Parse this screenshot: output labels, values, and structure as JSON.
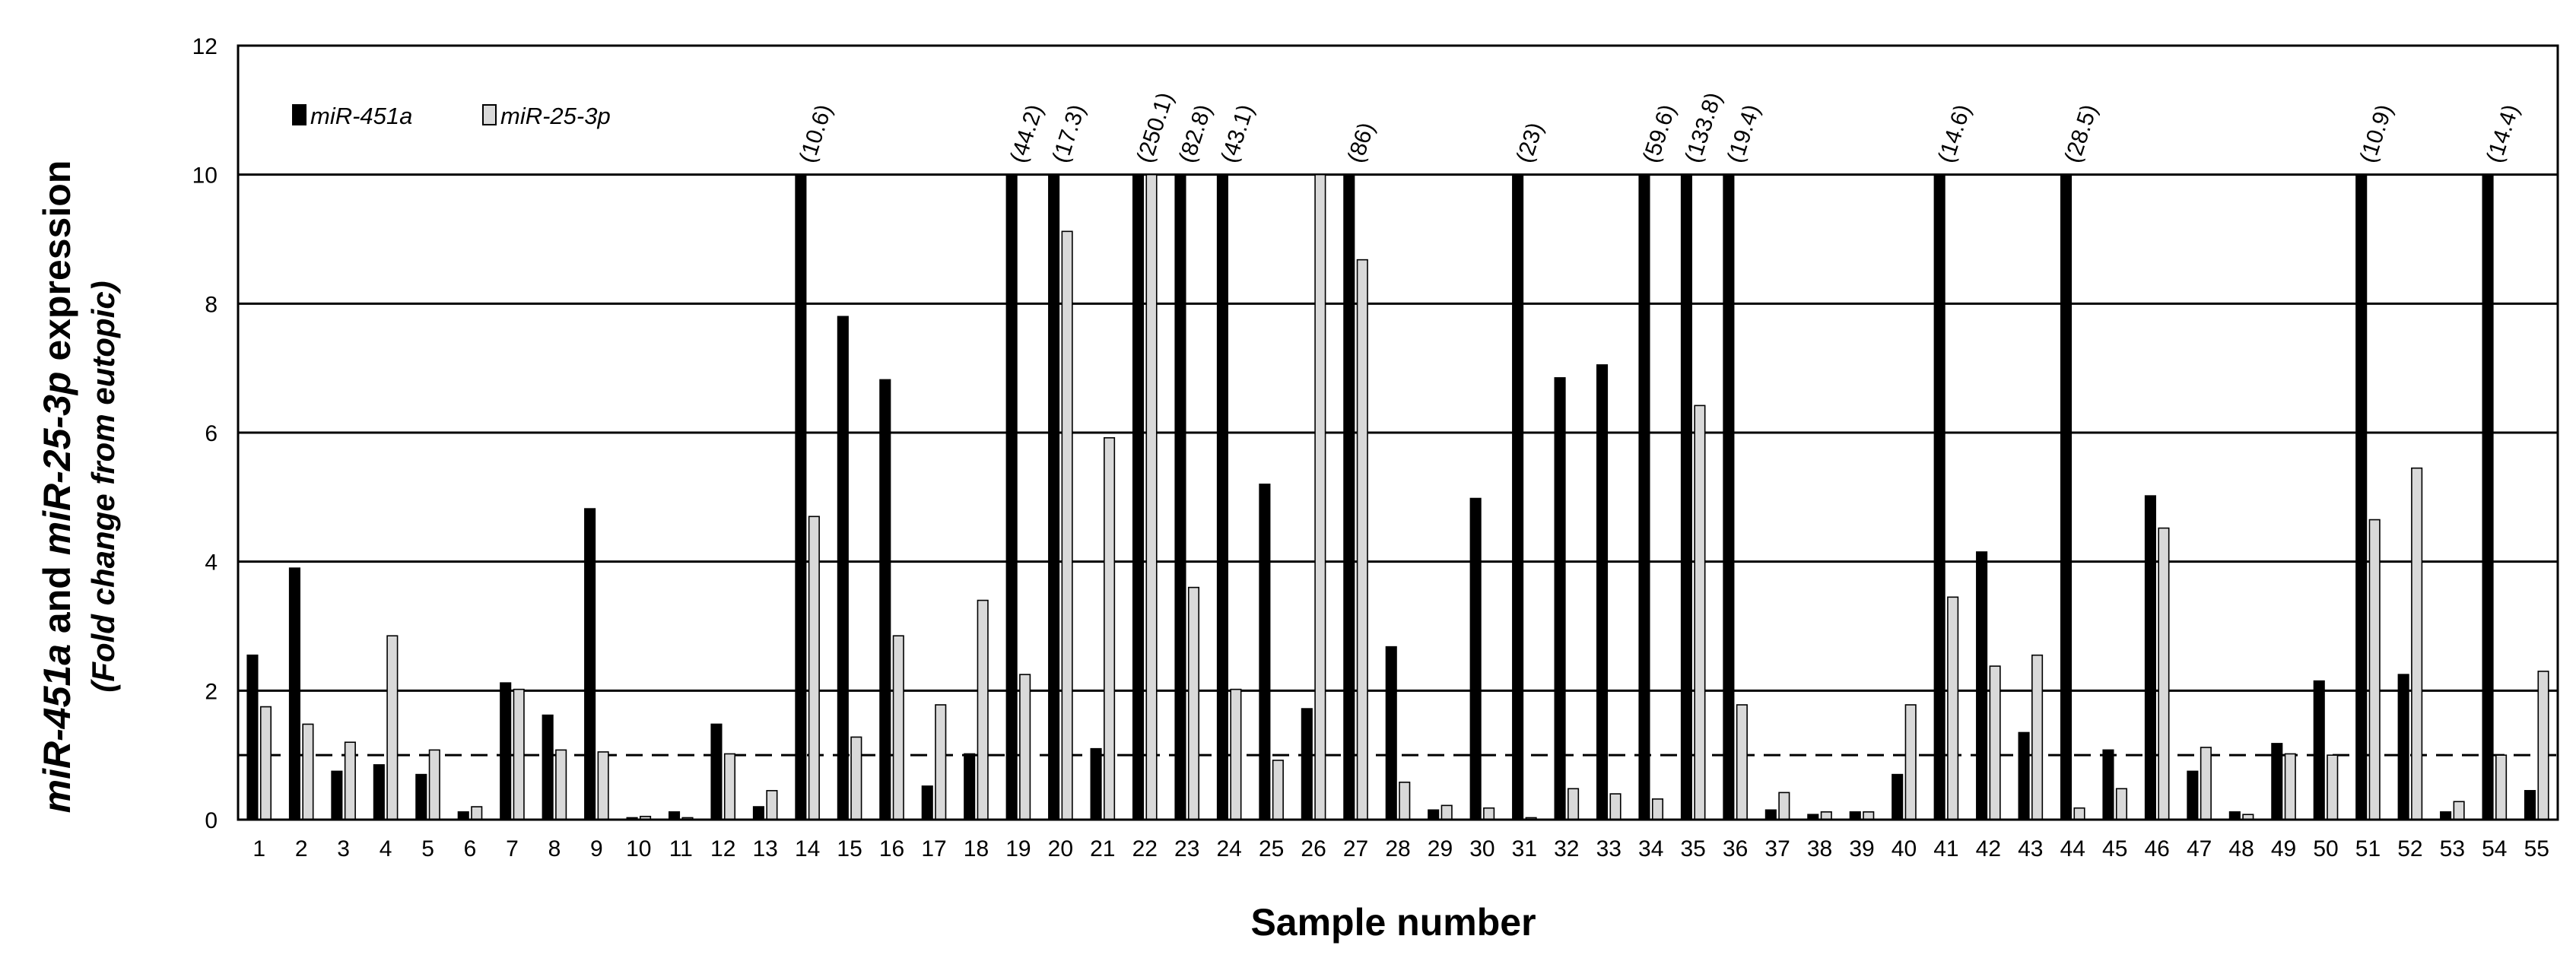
{
  "chart_data": {
    "type": "bar",
    "xlabel": "Sample number",
    "ylabel": {
      "line1": [
        {
          "text": "miR-451a",
          "italic": true
        },
        {
          "text": " and ",
          "italic": false
        },
        {
          "text": "miR-25-3p",
          "italic": true
        },
        {
          "text": " expression",
          "italic": false
        }
      ],
      "line2": "(Fold change from eutopic)"
    },
    "ylim": [
      0,
      12
    ],
    "yticks": [
      0,
      2,
      4,
      6,
      8,
      10,
      12
    ],
    "grid": "horizontal",
    "reference_line": 1,
    "legend_position": "top-left",
    "categories": [
      "1",
      "2",
      "3",
      "4",
      "5",
      "6",
      "7",
      "8",
      "9",
      "10",
      "11",
      "12",
      "13",
      "14",
      "15",
      "16",
      "17",
      "18",
      "19",
      "20",
      "21",
      "22",
      "23",
      "24",
      "25",
      "26",
      "27",
      "28",
      "29",
      "30",
      "31",
      "32",
      "33",
      "34",
      "35",
      "36",
      "37",
      "38",
      "39",
      "40",
      "41",
      "42",
      "43",
      "44",
      "45",
      "46",
      "47",
      "48",
      "49",
      "50",
      "51",
      "52",
      "53",
      "54",
      "55"
    ],
    "series": [
      {
        "name": "miR-451a",
        "color": "#000000",
        "values": [
          2.55,
          3.9,
          0.75,
          0.85,
          0.7,
          0.12,
          2.12,
          1.62,
          4.82,
          0.03,
          0.12,
          1.48,
          0.2,
          10,
          7.8,
          6.82,
          0.52,
          1.02,
          10,
          10,
          1.1,
          10,
          10,
          10,
          5.2,
          1.72,
          10,
          2.68,
          0.15,
          4.98,
          10,
          6.85,
          7.05,
          10,
          10,
          10,
          0.15,
          0.08,
          0.12,
          0.7,
          10,
          4.15,
          1.35,
          10,
          1.08,
          5.02,
          0.75,
          0.12,
          1.18,
          2.15,
          10,
          2.25,
          0.12,
          10,
          0.45
        ]
      },
      {
        "name": "miR-25-3p",
        "color": "#d9d9d9",
        "values": [
          1.75,
          1.48,
          1.2,
          2.85,
          1.08,
          0.2,
          2.02,
          1.08,
          1.05,
          0.05,
          0.03,
          1.02,
          0.45,
          4.7,
          1.28,
          2.85,
          1.78,
          3.4,
          2.25,
          9.12,
          5.92,
          10,
          3.6,
          2.02,
          0.92,
          10,
          8.68,
          0.58,
          0.22,
          0.18,
          0.03,
          0.48,
          0.4,
          0.32,
          6.42,
          1.78,
          0.42,
          0.12,
          0.12,
          1.78,
          3.45,
          2.38,
          2.55,
          0.18,
          0.48,
          4.52,
          1.12,
          0.08,
          1.02,
          1.0,
          4.65,
          5.45,
          0.28,
          1.0,
          2.3
        ]
      }
    ],
    "annotations": [
      "(10.6)",
      "(44.2)",
      "(17.3)",
      "(250.1)",
      "(82.8)",
      "(43.1)",
      "(86)",
      "(23)",
      "(59.6)",
      "(133.8)",
      "(19.4)",
      "(14.6)",
      "(28.5)",
      "(10.9)",
      "(14.4)"
    ],
    "annotation_samples": [
      14,
      19,
      20,
      22,
      23,
      24,
      27,
      31,
      34,
      35,
      36,
      41,
      44,
      51,
      54
    ]
  }
}
